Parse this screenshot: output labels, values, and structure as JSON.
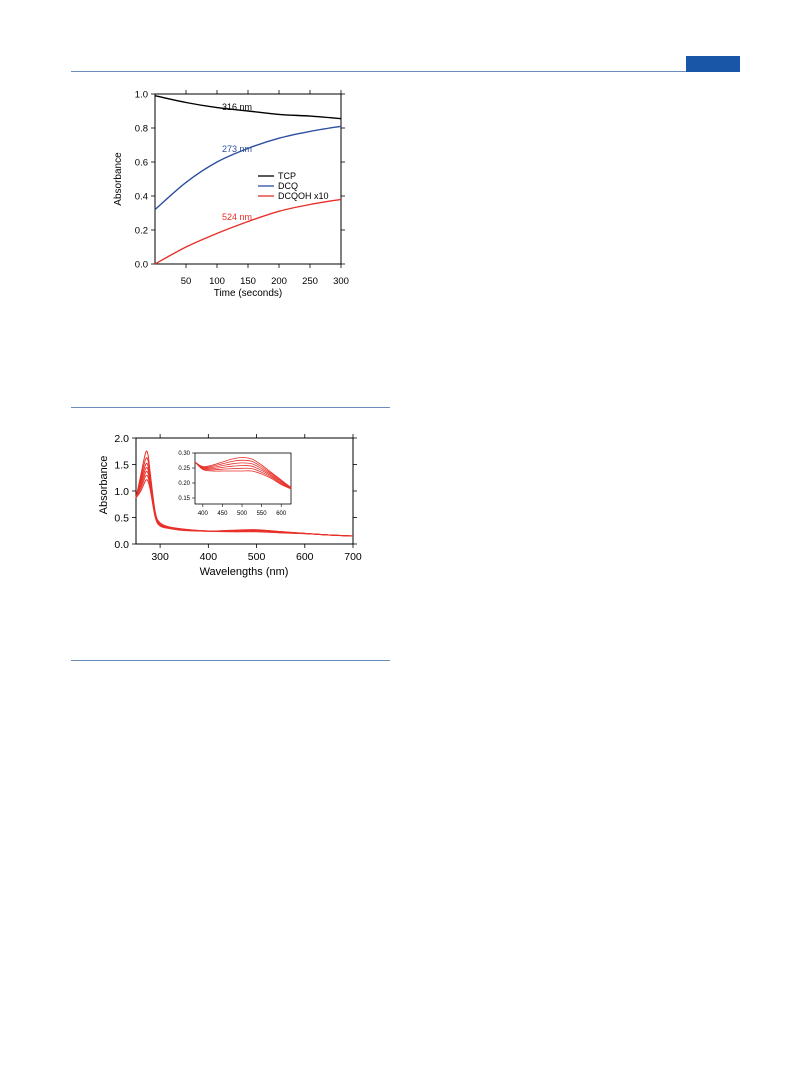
{
  "chart_data": [
    {
      "type": "line",
      "xlabel": "Time (seconds)",
      "ylabel": "Absorbance",
      "xlim": [
        0,
        300
      ],
      "ylim": [
        0,
        1.0
      ],
      "xticks": [
        50,
        100,
        150,
        200,
        250,
        300
      ],
      "xtick_labels": [
        "50",
        "100",
        "150",
        "200",
        "250",
        "300"
      ],
      "yticks": [
        0.0,
        0.2,
        0.4,
        0.6,
        0.8,
        1.0
      ],
      "ytick_labels": [
        "0.0",
        "0.2",
        "0.4",
        "0.6",
        "0.8",
        "1.0"
      ],
      "legend_position": "center-right",
      "series": [
        {
          "name": "TCP",
          "color": "#000000",
          "annotation": "316 nm",
          "x": [
            0,
            50,
            100,
            150,
            200,
            250,
            300
          ],
          "values": [
            0.99,
            0.95,
            0.92,
            0.9,
            0.88,
            0.87,
            0.855
          ]
        },
        {
          "name": "DCQ",
          "color": "#2d4fa0",
          "annotation": "273 nm",
          "x": [
            0,
            50,
            100,
            150,
            200,
            250,
            300
          ],
          "values": [
            0.32,
            0.48,
            0.6,
            0.68,
            0.74,
            0.78,
            0.81
          ]
        },
        {
          "name": "DCQOH x10",
          "color": "#e8302a",
          "annotation": "524 nm",
          "x": [
            0,
            50,
            100,
            150,
            200,
            250,
            300
          ],
          "values": [
            0.0,
            0.1,
            0.18,
            0.25,
            0.31,
            0.35,
            0.38
          ]
        }
      ]
    },
    {
      "type": "line",
      "xlabel": "Wavelengths (nm)",
      "ylabel": "Absorbance",
      "xlim": [
        250,
        700
      ],
      "ylim": [
        0,
        2.0
      ],
      "xticks": [
        300,
        400,
        500,
        600,
        700
      ],
      "xtick_labels": [
        "300",
        "400",
        "500",
        "600",
        "700"
      ],
      "yticks": [
        0.0,
        0.5,
        1.0,
        1.5,
        2.0
      ],
      "ytick_labels": [
        "0.0",
        "0.5",
        "1.0",
        "1.5",
        "2.0"
      ],
      "series_color": "#e8302a",
      "wavelengths": [
        250,
        260,
        270,
        275,
        280,
        290,
        300,
        320,
        350,
        400,
        450,
        500,
        550,
        600,
        650,
        700
      ],
      "series": [
        {
          "values": [
            0.87,
            1.3,
            1.72,
            1.68,
            1.3,
            0.6,
            0.4,
            0.32,
            0.28,
            0.245,
            0.26,
            0.27,
            0.235,
            0.2,
            0.17,
            0.15
          ]
        },
        {
          "values": [
            0.87,
            1.25,
            1.6,
            1.57,
            1.25,
            0.58,
            0.39,
            0.31,
            0.275,
            0.245,
            0.255,
            0.265,
            0.23,
            0.2,
            0.17,
            0.15
          ]
        },
        {
          "values": [
            0.87,
            1.2,
            1.5,
            1.47,
            1.2,
            0.56,
            0.38,
            0.31,
            0.27,
            0.245,
            0.25,
            0.26,
            0.225,
            0.2,
            0.17,
            0.15
          ]
        },
        {
          "values": [
            0.87,
            1.15,
            1.42,
            1.4,
            1.15,
            0.55,
            0.37,
            0.3,
            0.27,
            0.243,
            0.245,
            0.253,
            0.222,
            0.198,
            0.17,
            0.15
          ]
        },
        {
          "values": [
            0.87,
            1.1,
            1.35,
            1.33,
            1.1,
            0.53,
            0.36,
            0.3,
            0.265,
            0.242,
            0.24,
            0.245,
            0.218,
            0.197,
            0.17,
            0.15
          ]
        },
        {
          "values": [
            0.87,
            1.05,
            1.28,
            1.26,
            1.05,
            0.52,
            0.35,
            0.295,
            0.26,
            0.241,
            0.235,
            0.238,
            0.214,
            0.196,
            0.17,
            0.15
          ]
        },
        {
          "values": [
            0.87,
            1.0,
            1.2,
            1.18,
            1.0,
            0.5,
            0.34,
            0.29,
            0.255,
            0.24,
            0.23,
            0.23,
            0.21,
            0.195,
            0.17,
            0.15
          ]
        }
      ],
      "inset": {
        "xlim": [
          380,
          625
        ],
        "ylim": [
          0.13,
          0.3
        ],
        "xticks": [
          400,
          450,
          500,
          550,
          600
        ],
        "xtick_labels": [
          "400",
          "450",
          "500",
          "550",
          "600"
        ],
        "yticks": [
          0.15,
          0.2,
          0.25,
          0.3
        ],
        "ytick_labels": [
          "0.15",
          "0.20",
          "0.25",
          "0.30"
        ],
        "wavelengths": [
          380,
          400,
          425,
          450,
          475,
          500,
          525,
          550,
          575,
          600,
          625
        ],
        "series": [
          {
            "values": [
              0.27,
              0.255,
              0.26,
              0.27,
              0.28,
              0.285,
              0.28,
              0.26,
              0.235,
              0.21,
              0.185
            ]
          },
          {
            "values": [
              0.27,
              0.253,
              0.256,
              0.264,
              0.272,
              0.276,
              0.272,
              0.254,
              0.231,
              0.207,
              0.184
            ]
          },
          {
            "values": [
              0.27,
              0.251,
              0.252,
              0.258,
              0.264,
              0.267,
              0.264,
              0.248,
              0.227,
              0.204,
              0.183
            ]
          },
          {
            "values": [
              0.27,
              0.249,
              0.248,
              0.252,
              0.256,
              0.258,
              0.256,
              0.242,
              0.223,
              0.201,
              0.182
            ]
          },
          {
            "values": [
              0.27,
              0.247,
              0.244,
              0.246,
              0.248,
              0.249,
              0.248,
              0.236,
              0.219,
              0.198,
              0.181
            ]
          },
          {
            "values": [
              0.27,
              0.245,
              0.24,
              0.24,
              0.24,
              0.24,
              0.24,
              0.23,
              0.215,
              0.195,
              0.18
            ]
          }
        ]
      }
    }
  ]
}
